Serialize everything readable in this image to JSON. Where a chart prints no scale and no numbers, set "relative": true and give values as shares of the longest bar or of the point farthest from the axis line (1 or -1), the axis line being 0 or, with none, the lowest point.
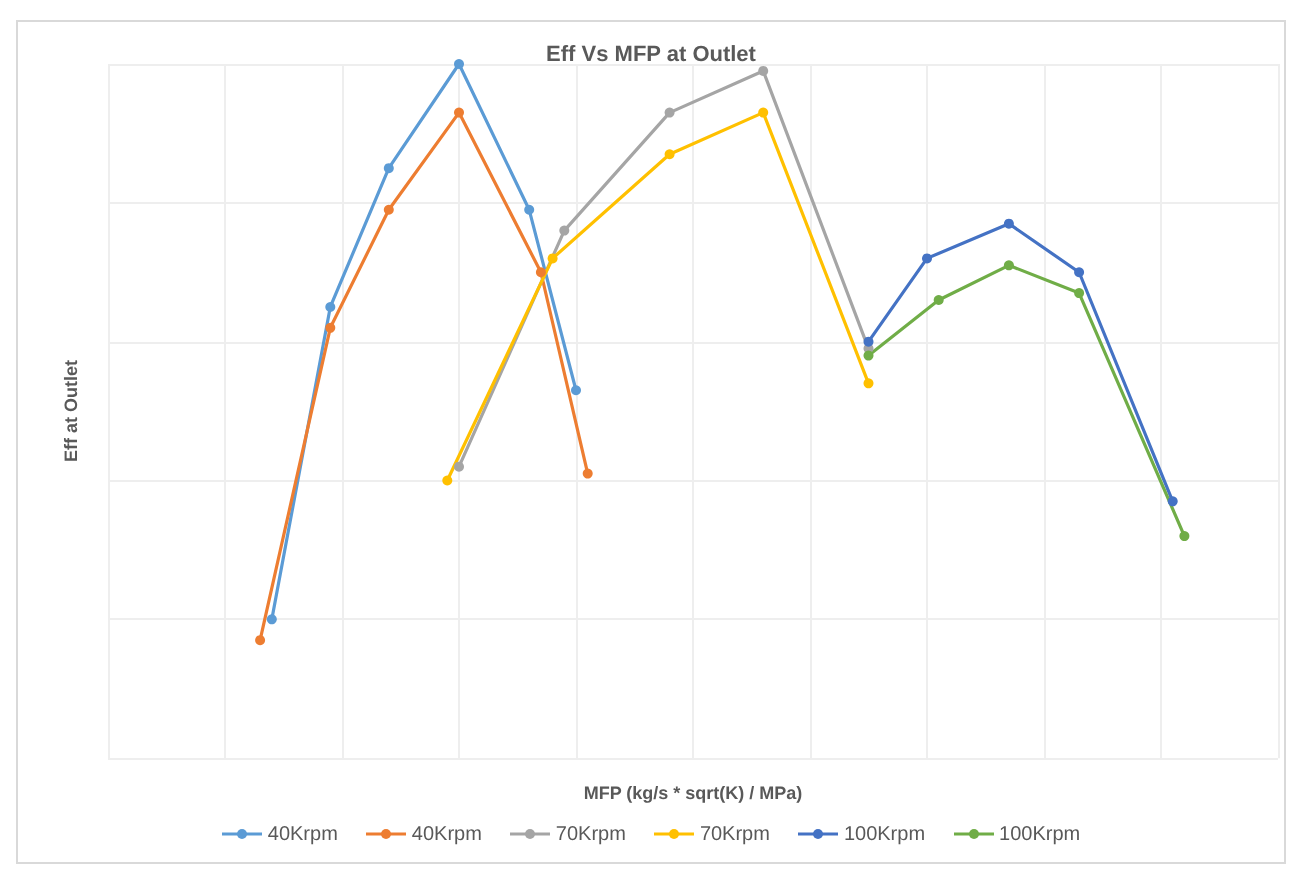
{
  "chart_data": {
    "type": "line",
    "title": "Eff Vs MFP at Outlet",
    "xlabel": "MFP (kg/s * sqrt(K) / MPa)",
    "ylabel": "Eff at Outlet",
    "relative": true,
    "grid": true,
    "legend": "bottom",
    "marker": "circle",
    "line_style": "solid",
    "categories": [
      null,
      null,
      null,
      null,
      null,
      null,
      null,
      null,
      null,
      null,
      null,
      null,
      null,
      null,
      null,
      null,
      null,
      null,
      null,
      null,
      null,
      null,
      null,
      null,
      null,
      null,
      null,
      null,
      null,
      null,
      null,
      null,
      null,
      null,
      null,
      null,
      null,
      null,
      null,
      null,
      null,
      null,
      null,
      null,
      null,
      null,
      null,
      null,
      null,
      null,
      null,
      null,
      null,
      null,
      null,
      null,
      null,
      null,
      null,
      null,
      null,
      null,
      null,
      null,
      null,
      null,
      null,
      null,
      null,
      null,
      null,
      null,
      null,
      null,
      null,
      null,
      null,
      null,
      null,
      null,
      null,
      null,
      null,
      null,
      null,
      null,
      null,
      null,
      null,
      null,
      null,
      null,
      null,
      null,
      null,
      null,
      null,
      null,
      null,
      null,
      null
    ],
    "series": [
      {
        "name": "40Krpm",
        "color": "#5b9bd5",
        "values": [
          null,
          null,
          null,
          null,
          null,
          null,
          null,
          null,
          null,
          null,
          null,
          null,
          null,
          null,
          0.2,
          null,
          null,
          null,
          null,
          0.65,
          null,
          null,
          null,
          null,
          0.85,
          null,
          null,
          null,
          null,
          null,
          1.0,
          null,
          null,
          null,
          null,
          null,
          0.79,
          null,
          null,
          null,
          0.53,
          null,
          null,
          null,
          null,
          null,
          null,
          null,
          null,
          null,
          null,
          null,
          null,
          null,
          null,
          null,
          null,
          null,
          null,
          null,
          null,
          null,
          null,
          null,
          null,
          null,
          null,
          null,
          null,
          null,
          null,
          null,
          null,
          null,
          null,
          null,
          null,
          null,
          null,
          null,
          null,
          null,
          null,
          null,
          null,
          null,
          null,
          null,
          null,
          null,
          null,
          null,
          null,
          null,
          null,
          null,
          null,
          null,
          null,
          null,
          null
        ]
      },
      {
        "name": "40Krpm",
        "color": "#ed7d31",
        "values": [
          null,
          null,
          null,
          null,
          null,
          null,
          null,
          null,
          null,
          null,
          null,
          null,
          null,
          0.17,
          null,
          null,
          null,
          null,
          null,
          0.62,
          null,
          null,
          null,
          null,
          0.79,
          null,
          null,
          null,
          null,
          null,
          0.93,
          null,
          null,
          null,
          null,
          null,
          null,
          0.7,
          null,
          null,
          null,
          0.41,
          null,
          null,
          null,
          null,
          null,
          null,
          null,
          null,
          null,
          null,
          null,
          null,
          null,
          null,
          null,
          null,
          null,
          null,
          null,
          null,
          null,
          null,
          null,
          null,
          null,
          null,
          null,
          null,
          null,
          null,
          null,
          null,
          null,
          null,
          null,
          null,
          null,
          null,
          null,
          null,
          null,
          null,
          null,
          null,
          null,
          null,
          null,
          null,
          null,
          null,
          null,
          null,
          null,
          null,
          null,
          null,
          null,
          null,
          null
        ]
      },
      {
        "name": "70Krpm",
        "color": "#a5a5a5",
        "values": [
          null,
          null,
          null,
          null,
          null,
          null,
          null,
          null,
          null,
          null,
          null,
          null,
          null,
          null,
          null,
          null,
          null,
          null,
          null,
          null,
          null,
          null,
          null,
          null,
          null,
          null,
          null,
          null,
          null,
          null,
          0.42,
          null,
          null,
          null,
          null,
          null,
          null,
          null,
          null,
          0.76,
          null,
          null,
          null,
          null,
          null,
          null,
          null,
          null,
          0.93,
          null,
          null,
          null,
          null,
          null,
          null,
          null,
          0.99,
          null,
          null,
          null,
          null,
          null,
          null,
          null,
          null,
          0.59,
          null,
          null,
          null,
          null,
          null,
          null,
          null,
          null,
          null,
          null,
          null,
          null,
          null,
          null,
          null,
          null,
          null,
          null,
          null,
          null,
          null,
          null,
          null,
          null,
          null,
          null,
          null,
          null,
          null,
          null,
          null,
          null,
          null,
          null,
          null
        ]
      },
      {
        "name": "70Krpm",
        "color": "#ffc000",
        "values": [
          null,
          null,
          null,
          null,
          null,
          null,
          null,
          null,
          null,
          null,
          null,
          null,
          null,
          null,
          null,
          null,
          null,
          null,
          null,
          null,
          null,
          null,
          null,
          null,
          null,
          null,
          null,
          null,
          null,
          0.4,
          null,
          null,
          null,
          null,
          null,
          null,
          null,
          null,
          0.72,
          null,
          null,
          null,
          null,
          null,
          null,
          null,
          null,
          null,
          0.87,
          null,
          null,
          null,
          null,
          null,
          null,
          null,
          0.93,
          null,
          null,
          null,
          null,
          null,
          null,
          null,
          null,
          0.54,
          null,
          null,
          null,
          null,
          null,
          null,
          null,
          null,
          null,
          null,
          null,
          null,
          null,
          null,
          null,
          null,
          null,
          null,
          null,
          null,
          null,
          null,
          null,
          null,
          null,
          null,
          null,
          null,
          null,
          null,
          null,
          null,
          null,
          null,
          null
        ]
      },
      {
        "name": "100Krpm",
        "color": "#4472c4",
        "values": [
          null,
          null,
          null,
          null,
          null,
          null,
          null,
          null,
          null,
          null,
          null,
          null,
          null,
          null,
          null,
          null,
          null,
          null,
          null,
          null,
          null,
          null,
          null,
          null,
          null,
          null,
          null,
          null,
          null,
          null,
          null,
          null,
          null,
          null,
          null,
          null,
          null,
          null,
          null,
          null,
          null,
          null,
          null,
          null,
          null,
          null,
          null,
          null,
          null,
          null,
          null,
          null,
          null,
          null,
          null,
          null,
          null,
          null,
          null,
          null,
          null,
          null,
          null,
          null,
          null,
          0.6,
          null,
          null,
          null,
          null,
          0.72,
          null,
          null,
          null,
          null,
          null,
          null,
          0.77,
          null,
          null,
          null,
          null,
          null,
          0.7,
          null,
          null,
          null,
          null,
          null,
          null,
          null,
          0.37,
          null,
          null,
          null,
          null,
          null,
          null,
          null,
          null,
          null
        ]
      },
      {
        "name": "100Krpm",
        "color": "#70ad47",
        "values": [
          null,
          null,
          null,
          null,
          null,
          null,
          null,
          null,
          null,
          null,
          null,
          null,
          null,
          null,
          null,
          null,
          null,
          null,
          null,
          null,
          null,
          null,
          null,
          null,
          null,
          null,
          null,
          null,
          null,
          null,
          null,
          null,
          null,
          null,
          null,
          null,
          null,
          null,
          null,
          null,
          null,
          null,
          null,
          null,
          null,
          null,
          null,
          null,
          null,
          null,
          null,
          null,
          null,
          null,
          null,
          null,
          null,
          null,
          null,
          null,
          null,
          null,
          null,
          null,
          null,
          0.58,
          null,
          null,
          null,
          null,
          null,
          0.66,
          null,
          null,
          null,
          null,
          null,
          0.71,
          null,
          null,
          null,
          null,
          null,
          0.67,
          null,
          null,
          null,
          null,
          null,
          null,
          null,
          null,
          0.32,
          null,
          null,
          null,
          null,
          null,
          null,
          null,
          null
        ]
      }
    ]
  }
}
